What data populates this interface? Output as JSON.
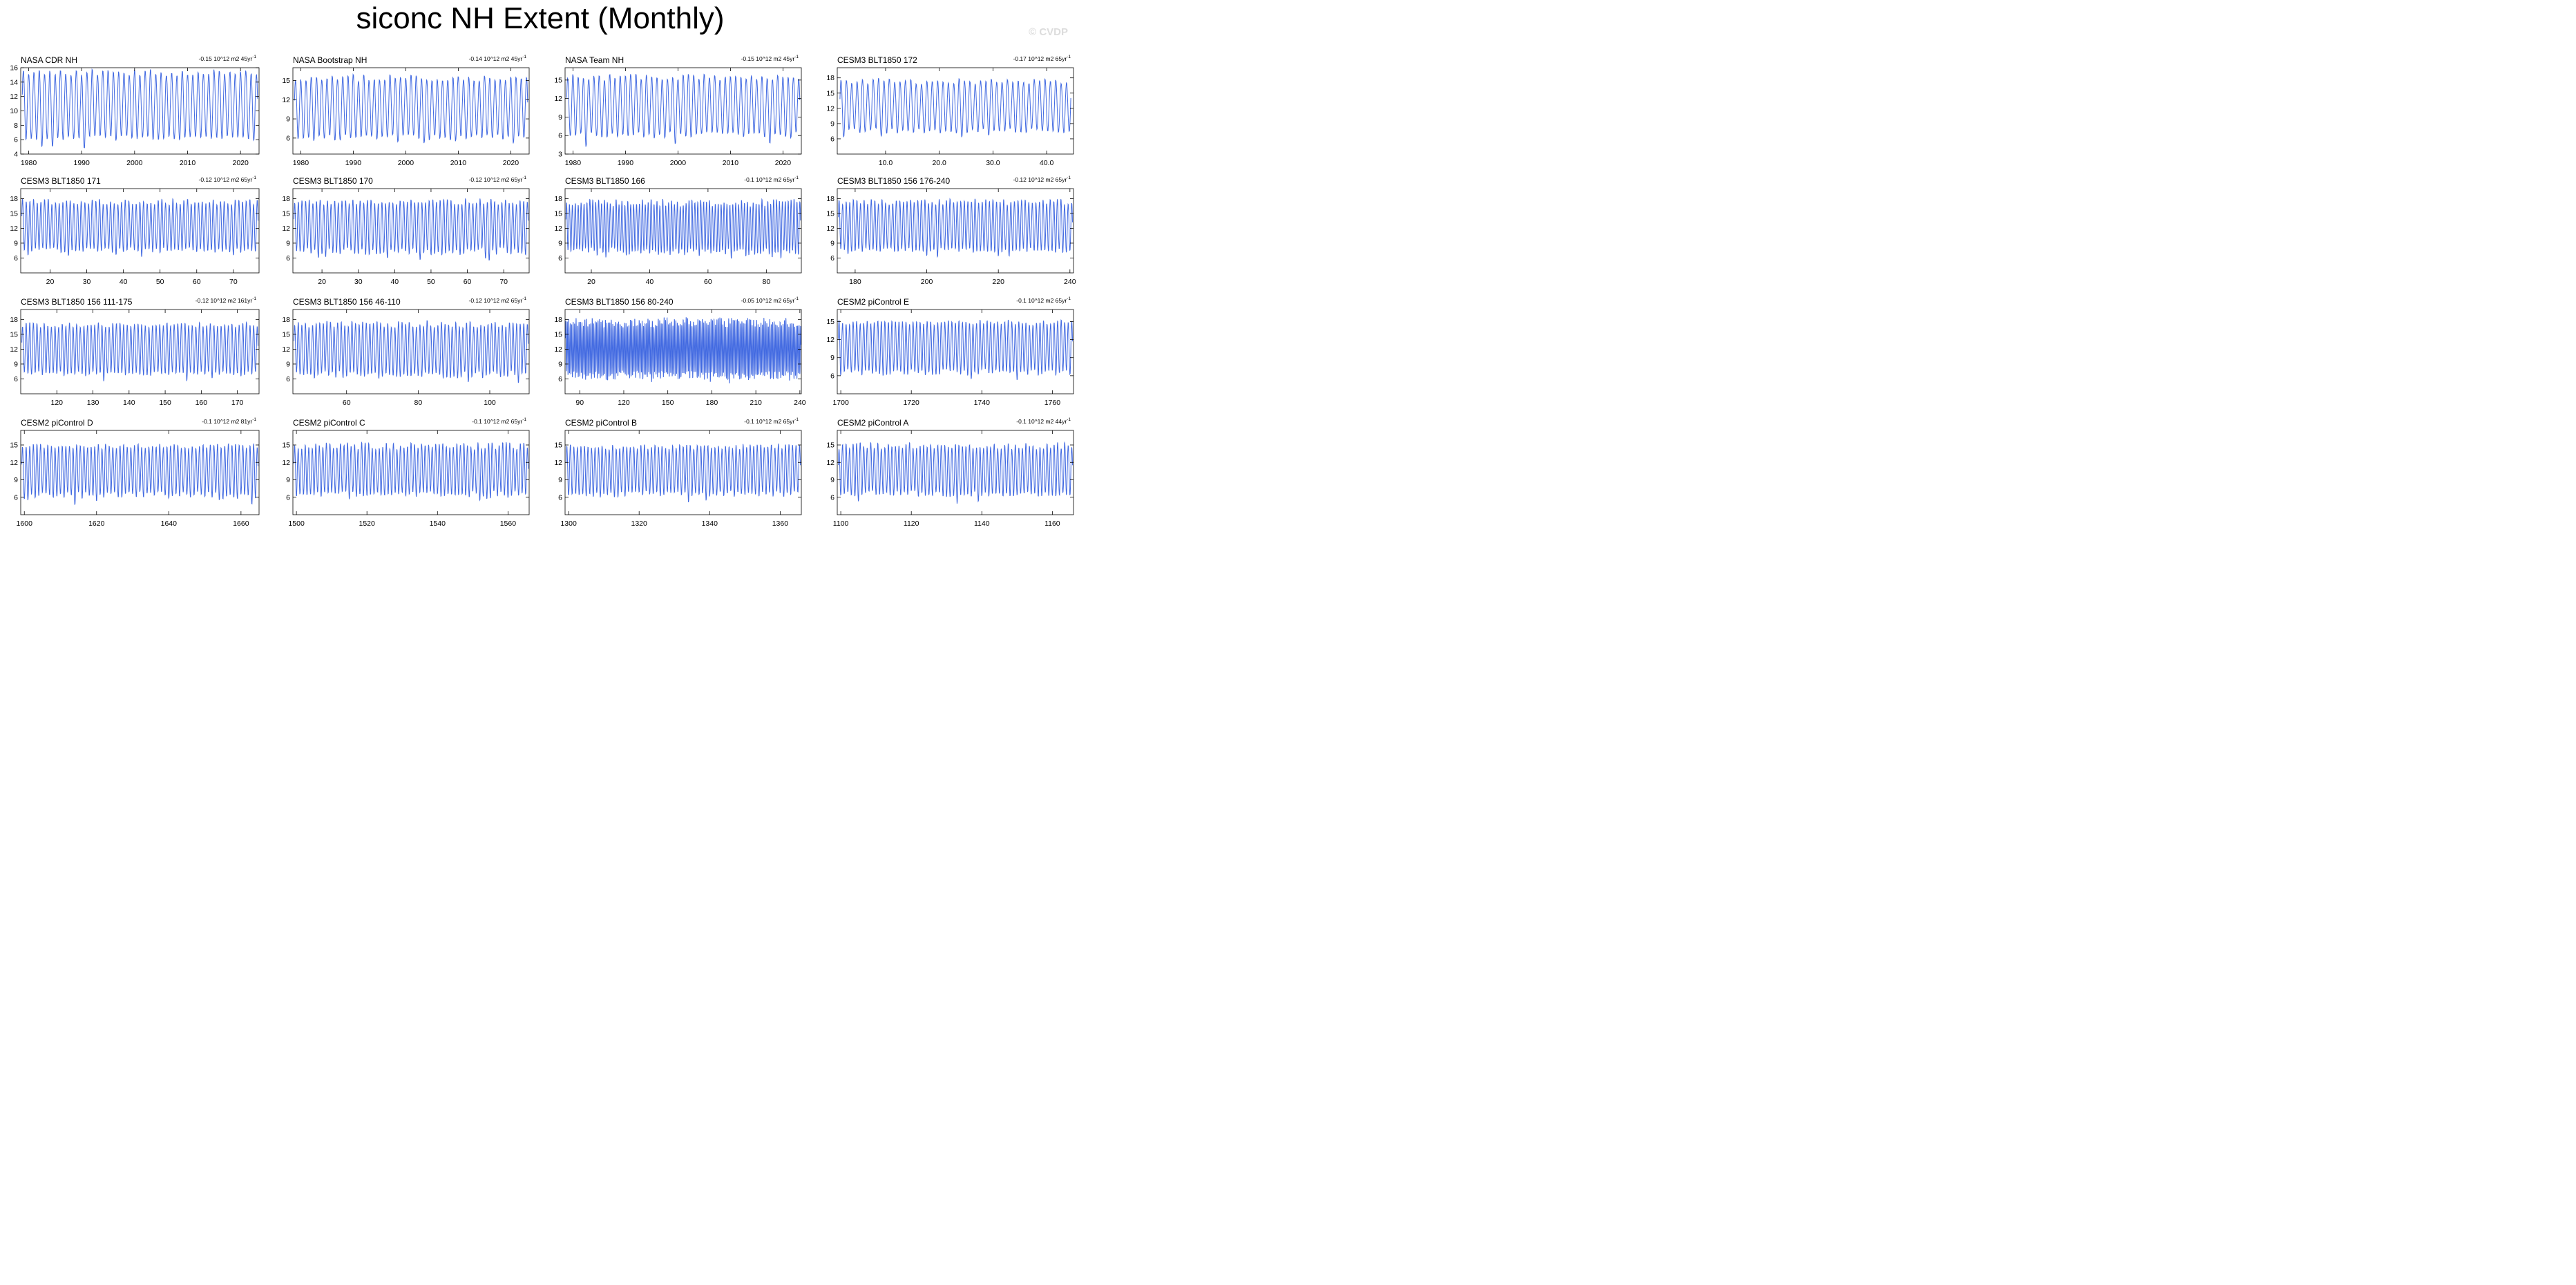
{
  "figure": {
    "title": "siconc NH Extent (Monthly)",
    "watermark": "© CVDP"
  },
  "style": {
    "line_color": "#4169e1",
    "frame_color": "#000000"
  },
  "chart_data": [
    {
      "type": "line",
      "title": "NASA CDR NH",
      "trend": "-0.15 10^12 m2 45yr",
      "x_range": [
        1978.5,
        2023.5
      ],
      "ylim": [
        4,
        16
      ],
      "yticks": [
        4,
        6,
        8,
        10,
        12,
        14,
        16
      ],
      "xticks": [
        1980,
        1990,
        2000,
        2010,
        2020
      ],
      "xtick_labels": [
        "1980",
        "1990",
        "2000",
        "2010",
        "2020"
      ],
      "series": [
        {
          "amp_min": [
            5.8,
            6.5
          ],
          "amp_max": [
            15.0,
            15.8
          ],
          "x0": 1978.8,
          "x1": 2023.2
        }
      ]
    },
    {
      "type": "line",
      "title": "NASA Bootstrap NH",
      "trend": "-0.14 10^12 m2 45yr",
      "x_range": [
        1978.5,
        2023.5
      ],
      "ylim": [
        3.5,
        17
      ],
      "yticks": [
        6,
        9,
        12,
        15
      ],
      "xticks": [
        1980,
        1990,
        2000,
        2010,
        2020
      ],
      "xtick_labels": [
        "1980",
        "1990",
        "2000",
        "2010",
        "2020"
      ],
      "series": [
        {
          "amp_min": [
            5.5,
            6.5
          ],
          "amp_max": [
            15.0,
            16.0
          ],
          "x0": 1978.8,
          "x1": 2023.2
        }
      ]
    },
    {
      "type": "line",
      "title": "NASA Team NH",
      "trend": "-0.15 10^12 m2 45yr",
      "x_range": [
        1978.5,
        2023.5
      ],
      "ylim": [
        3,
        17
      ],
      "yticks": [
        3,
        6,
        9,
        12,
        15
      ],
      "xticks": [
        1980,
        1990,
        2000,
        2010,
        2020
      ],
      "xtick_labels": [
        "1980",
        "1990",
        "2000",
        "2010",
        "2020"
      ],
      "series": [
        {
          "amp_min": [
            5.5,
            6.5
          ],
          "amp_max": [
            15.0,
            16.0
          ],
          "x0": 1978.8,
          "x1": 2023.2
        }
      ]
    },
    {
      "type": "line",
      "title": "CESM3 BLT1850 172",
      "trend": "-0.17 10^12 m2 65yr",
      "x_range": [
        1,
        45
      ],
      "ylim": [
        3,
        20
      ],
      "yticks": [
        6,
        9,
        12,
        15,
        18
      ],
      "xticks": [
        10,
        20,
        30,
        40
      ],
      "xtick_labels": [
        "10.0",
        "20.0",
        "30.0",
        "40.0"
      ],
      "series": [
        {
          "amp_min": [
            7.0,
            8.0
          ],
          "amp_max": [
            16.8,
            18.0
          ],
          "x0": 1.5,
          "x1": 44.5
        }
      ]
    },
    {
      "type": "line",
      "title": "CESM3 BLT1850 171",
      "trend": "-0.12 10^12 m2 65yr",
      "x_range": [
        12,
        77
      ],
      "ylim": [
        3,
        20
      ],
      "yticks": [
        6,
        9,
        12,
        15,
        18
      ],
      "xticks": [
        20,
        30,
        40,
        50,
        60,
        70
      ],
      "xtick_labels": [
        "20",
        "30",
        "40",
        "50",
        "60",
        "70"
      ],
      "series": [
        {
          "amp_min": [
            7.0,
            8.0
          ],
          "amp_max": [
            16.8,
            18.0
          ],
          "x0": 12.3,
          "x1": 76.7
        }
      ]
    },
    {
      "type": "line",
      "title": "CESM3 BLT1850 170",
      "trend": "-0.12 10^12 m2 65yr",
      "x_range": [
        12,
        77
      ],
      "ylim": [
        3,
        20
      ],
      "yticks": [
        6,
        9,
        12,
        15,
        18
      ],
      "xticks": [
        20,
        30,
        40,
        50,
        60,
        70
      ],
      "xtick_labels": [
        "20",
        "30",
        "40",
        "50",
        "60",
        "70"
      ],
      "series": [
        {
          "amp_min": [
            6.5,
            8.0
          ],
          "amp_max": [
            16.8,
            18.0
          ],
          "x0": 12.3,
          "x1": 76.7
        }
      ]
    },
    {
      "type": "line",
      "title": "CESM3 BLT1850 166",
      "trend": "-0.1 10^12 m2 65yr",
      "x_range": [
        11,
        92
      ],
      "ylim": [
        3,
        20
      ],
      "yticks": [
        6,
        9,
        12,
        15,
        18
      ],
      "xticks": [
        20,
        40,
        60,
        80
      ],
      "xtick_labels": [
        "20",
        "40",
        "60",
        "80"
      ],
      "series": [
        {
          "amp_min": [
            6.5,
            8.0
          ],
          "amp_max": [
            16.5,
            18.0
          ],
          "x0": 11.3,
          "x1": 91.7
        }
      ]
    },
    {
      "type": "line",
      "title": "CESM3 BLT1850 156 176-240",
      "trend": "-0.12 10^12 m2 65yr",
      "x_range": [
        175,
        241
      ],
      "ylim": [
        3,
        20
      ],
      "yticks": [
        6,
        9,
        12,
        15,
        18
      ],
      "xticks": [
        180,
        200,
        220,
        240
      ],
      "xtick_labels": [
        "180",
        "200",
        "220",
        "240"
      ],
      "series": [
        {
          "amp_min": [
            7.0,
            8.0
          ],
          "amp_max": [
            16.8,
            18.0
          ],
          "x0": 175.3,
          "x1": 240.7
        }
      ]
    },
    {
      "type": "line",
      "title": "CESM3 BLT1850 156 111-175",
      "trend": "-0.12 10^12 m2 161yr",
      "x_range": [
        110,
        176
      ],
      "ylim": [
        3,
        20
      ],
      "yticks": [
        6,
        9,
        12,
        15,
        18
      ],
      "xticks": [
        120,
        130,
        140,
        150,
        160,
        170
      ],
      "xtick_labels": [
        "120",
        "130",
        "140",
        "150",
        "160",
        "170"
      ],
      "series": [
        {
          "amp_min": [
            6.5,
            7.5
          ],
          "amp_max": [
            16.5,
            17.5
          ],
          "x0": 110.3,
          "x1": 175.7
        }
      ]
    },
    {
      "type": "line",
      "title": "CESM3 BLT1850 156 46-110",
      "trend": "-0.12 10^12 m2 65yr",
      "x_range": [
        45,
        111
      ],
      "ylim": [
        3,
        20
      ],
      "yticks": [
        6,
        9,
        12,
        15,
        18
      ],
      "xticks": [
        60,
        80,
        100
      ],
      "xtick_labels": [
        "60",
        "80",
        "100"
      ],
      "series": [
        {
          "amp_min": [
            6.0,
            7.5
          ],
          "amp_max": [
            16.5,
            17.8
          ],
          "x0": 45.3,
          "x1": 110.7
        }
      ]
    },
    {
      "type": "line",
      "title": "CESM3 BLT1850 156 80-240",
      "trend": "-0.05 10^12 m2 65yr",
      "x_range": [
        80,
        241
      ],
      "ylim": [
        3,
        20
      ],
      "yticks": [
        6,
        9,
        12,
        15,
        18
      ],
      "xticks": [
        90,
        120,
        150,
        180,
        210,
        240
      ],
      "xtick_labels": [
        "90",
        "120",
        "150",
        "180",
        "210",
        "240"
      ],
      "series": [
        {
          "amp_min": [
            5.8,
            7.5
          ],
          "amp_max": [
            16.5,
            18.5
          ],
          "x0": 80.3,
          "x1": 240.7
        }
      ]
    },
    {
      "type": "line",
      "title": "CESM2 piControl E",
      "trend": "-0.1 10^12 m2 65yr",
      "x_range": [
        1699,
        1766
      ],
      "ylim": [
        3,
        17
      ],
      "yticks": [
        6,
        9,
        12,
        15
      ],
      "xticks": [
        1700,
        1720,
        1740,
        1760
      ],
      "xtick_labels": [
        "1700",
        "1720",
        "1740",
        "1760"
      ],
      "series": [
        {
          "amp_min": [
            6.0,
            7.0
          ],
          "amp_max": [
            14.5,
            15.3
          ],
          "x0": 1699.3,
          "x1": 1765.7
        }
      ]
    },
    {
      "type": "line",
      "title": "CESM2 piControl D",
      "trend": "-0.1 10^12 m2 81yr",
      "x_range": [
        1599,
        1665
      ],
      "ylim": [
        3,
        17.5
      ],
      "yticks": [
        6,
        9,
        12,
        15
      ],
      "xticks": [
        1600,
        1620,
        1640,
        1660
      ],
      "xtick_labels": [
        "1600",
        "1620",
        "1640",
        "1660"
      ],
      "series": [
        {
          "amp_min": [
            5.5,
            7.0
          ],
          "amp_max": [
            14.5,
            15.3
          ],
          "x0": 1599.3,
          "x1": 1664.7
        }
      ]
    },
    {
      "type": "line",
      "title": "CESM2 piControl C",
      "trend": "-0.1 10^12 m2 65yr",
      "x_range": [
        1499,
        1566
      ],
      "ylim": [
        3,
        17.5
      ],
      "yticks": [
        6,
        9,
        12,
        15
      ],
      "xticks": [
        1500,
        1520,
        1540,
        1560
      ],
      "xtick_labels": [
        "1500",
        "1520",
        "1540",
        "1560"
      ],
      "series": [
        {
          "amp_min": [
            6.0,
            7.0
          ],
          "amp_max": [
            14.3,
            15.5
          ],
          "x0": 1499.3,
          "x1": 1565.7
        }
      ]
    },
    {
      "type": "line",
      "title": "CESM2 piControl B",
      "trend": "-0.1 10^12 m2 65yr",
      "x_range": [
        1299,
        1366
      ],
      "ylim": [
        3,
        17.5
      ],
      "yticks": [
        6,
        9,
        12,
        15
      ],
      "xticks": [
        1300,
        1320,
        1340,
        1360
      ],
      "xtick_labels": [
        "1300",
        "1320",
        "1340",
        "1360"
      ],
      "series": [
        {
          "amp_min": [
            6.0,
            7.0
          ],
          "amp_max": [
            14.3,
            15.2
          ],
          "x0": 1299.3,
          "x1": 1365.7
        }
      ]
    },
    {
      "type": "line",
      "title": "CESM2 piControl A",
      "trend": "-0.1 10^12 m2 44yr",
      "x_range": [
        1099,
        1166
      ],
      "ylim": [
        3,
        17.5
      ],
      "yticks": [
        6,
        9,
        12,
        15
      ],
      "xticks": [
        1100,
        1120,
        1140,
        1160
      ],
      "xtick_labels": [
        "1100",
        "1120",
        "1140",
        "1160"
      ],
      "series": [
        {
          "amp_min": [
            6.0,
            7.0
          ],
          "amp_max": [
            14.3,
            15.5
          ],
          "x0": 1099.3,
          "x1": 1165.7
        }
      ]
    }
  ]
}
